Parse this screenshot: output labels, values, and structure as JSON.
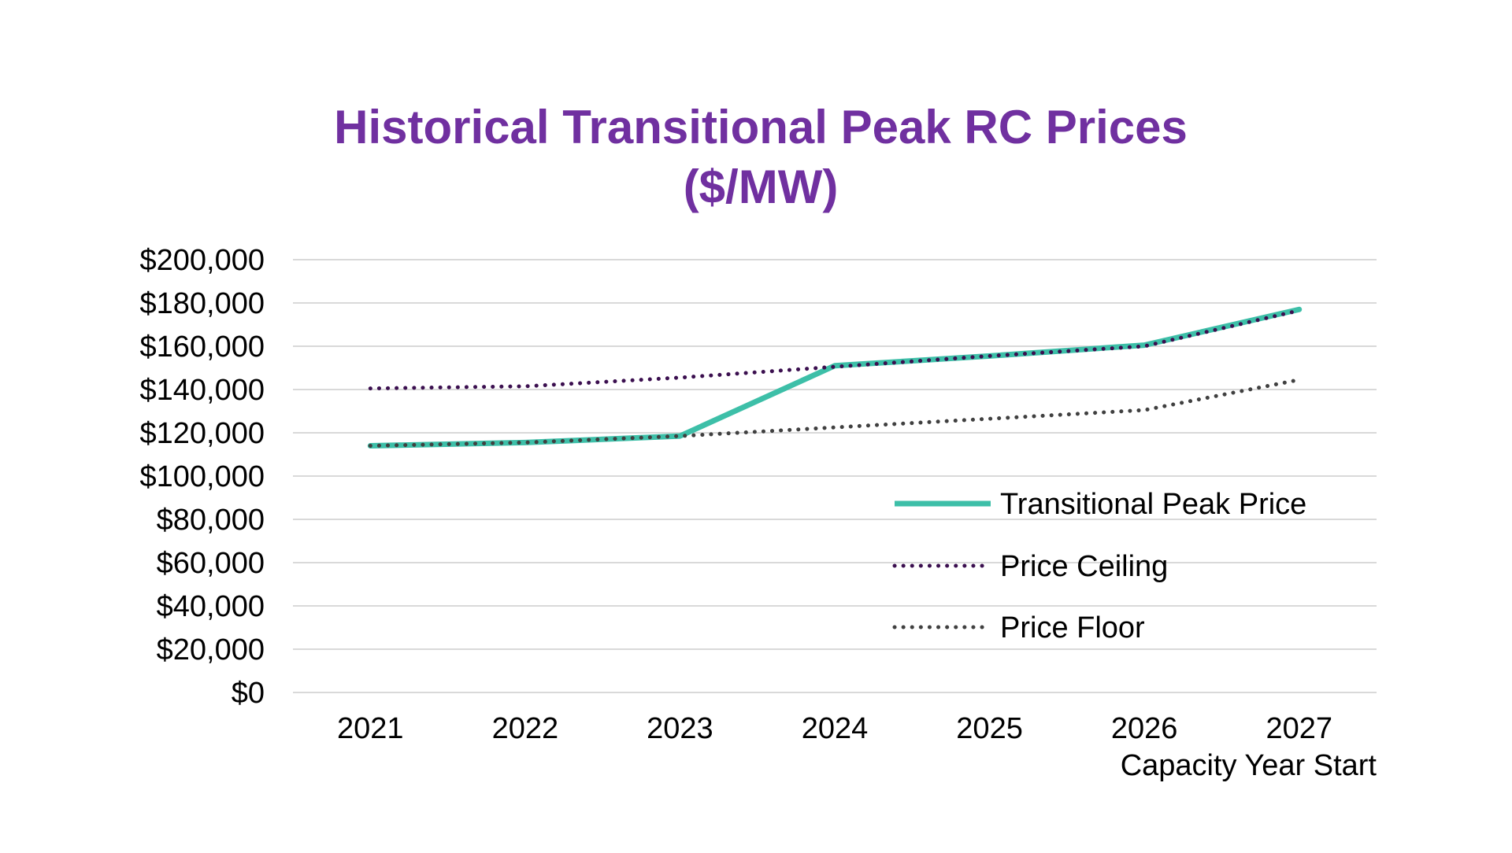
{
  "chart_data": {
    "type": "line",
    "title": [
      "Historical Transitional Peak RC Prices",
      "($/MW)"
    ],
    "xlabel": "Capacity Year Start",
    "ylabel": "",
    "categories": [
      "2021",
      "2022",
      "2023",
      "2024",
      "2025",
      "2026",
      "2027"
    ],
    "ylim": [
      0,
      200000
    ],
    "y_ticks": [
      0,
      20000,
      40000,
      60000,
      80000,
      100000,
      120000,
      140000,
      160000,
      180000,
      200000
    ],
    "y_tick_labels": [
      "$0",
      "$20,000",
      "$40,000",
      "$60,000",
      "$80,000",
      "$100,000",
      "$120,000",
      "$140,000",
      "$160,000",
      "$180,000",
      "$200,000"
    ],
    "grid": true,
    "legend_position": "right",
    "series": [
      {
        "name": "Transitional Peak Price",
        "values": [
          114000,
          115500,
          118500,
          151000,
          155500,
          160500,
          177000
        ],
        "color": "#3dbfa8",
        "style": "solid"
      },
      {
        "name": "Price Ceiling",
        "values": [
          140500,
          141500,
          145500,
          150500,
          155500,
          160000,
          176500
        ],
        "color": "#3b0f4f",
        "style": "dotted"
      },
      {
        "name": "Price Floor",
        "values": [
          114000,
          115500,
          118500,
          122500,
          126500,
          130500,
          144500
        ],
        "color": "#404040",
        "style": "dotted"
      }
    ]
  }
}
